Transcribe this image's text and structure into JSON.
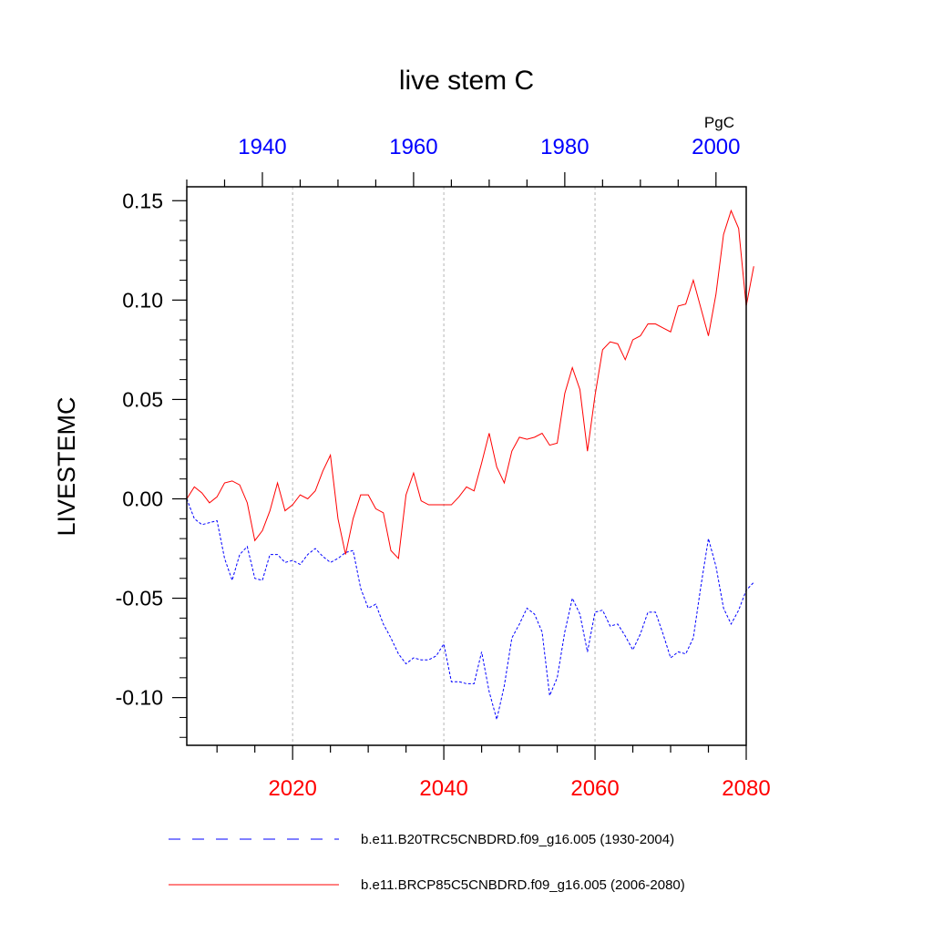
{
  "chart_data": {
    "type": "line",
    "title": "live stem C",
    "units": "PgC",
    "ylabel": "LIVESTEMC",
    "ylim": [
      -0.124,
      0.157
    ],
    "yticks": [
      {
        "value": 0.15,
        "label": "0.15"
      },
      {
        "value": 0.1,
        "label": "0.10"
      },
      {
        "value": 0.05,
        "label": "0.05"
      },
      {
        "value": 0.0,
        "label": "0.00"
      },
      {
        "value": -0.05,
        "label": "-0.05"
      },
      {
        "value": -0.1,
        "label": "-0.10"
      }
    ],
    "bottom_axis": {
      "color": "#ff0000",
      "xlim": [
        2006,
        2080
      ],
      "ticks": [
        {
          "value": 2020,
          "label": "2020"
        },
        {
          "value": 2040,
          "label": "2040"
        },
        {
          "value": 2060,
          "label": "2060"
        },
        {
          "value": 2080,
          "label": "2080"
        }
      ]
    },
    "top_axis": {
      "color": "#0000ff",
      "xlim": [
        1930,
        2004
      ],
      "ticks": [
        {
          "value": 1940,
          "label": "1940"
        },
        {
          "value": 1960,
          "label": "1960"
        },
        {
          "value": 1980,
          "label": "1980"
        },
        {
          "value": 2000,
          "label": "2000"
        }
      ]
    },
    "gridlines_x": [
      2020,
      2040,
      2060
    ],
    "series": [
      {
        "name": "b.e11.B20TRC5CNBDRD.f09_g16.005 (1930-2004)",
        "color": "#0000ff",
        "dash": "dashed",
        "axis": "top",
        "x_start": 1930,
        "values": [
          0.0,
          -0.01,
          -0.013,
          -0.012,
          -0.011,
          -0.03,
          -0.041,
          -0.028,
          -0.024,
          -0.04,
          -0.041,
          -0.028,
          -0.028,
          -0.032,
          -0.031,
          -0.033,
          -0.028,
          -0.025,
          -0.029,
          -0.032,
          -0.03,
          -0.027,
          -0.026,
          -0.045,
          -0.055,
          -0.053,
          -0.063,
          -0.07,
          -0.078,
          -0.083,
          -0.08,
          -0.081,
          -0.081,
          -0.079,
          -0.073,
          -0.092,
          -0.092,
          -0.093,
          -0.093,
          -0.077,
          -0.097,
          -0.111,
          -0.094,
          -0.07,
          -0.063,
          -0.055,
          -0.058,
          -0.067,
          -0.099,
          -0.09,
          -0.067,
          -0.05,
          -0.058,
          -0.077,
          -0.057,
          -0.056,
          -0.064,
          -0.063,
          -0.069,
          -0.076,
          -0.068,
          -0.057,
          -0.057,
          -0.068,
          -0.08,
          -0.077,
          -0.078,
          -0.07,
          -0.044,
          -0.02,
          -0.034,
          -0.055,
          -0.063,
          -0.056,
          -0.046,
          -0.042
        ]
      },
      {
        "name": "b.e11.BRCP85C5CNBDRD.f09_g16.005 (2006-2080)",
        "color": "#ff0000",
        "dash": "solid",
        "axis": "bottom",
        "x_start": 2006,
        "values": [
          0.0,
          0.006,
          0.003,
          -0.002,
          0.001,
          0.008,
          0.009,
          0.007,
          -0.002,
          -0.021,
          -0.016,
          -0.006,
          0.008,
          -0.006,
          -0.003,
          0.002,
          0.0,
          0.004,
          0.014,
          0.022,
          -0.01,
          -0.028,
          -0.01,
          0.002,
          0.002,
          -0.005,
          -0.007,
          -0.026,
          -0.03,
          0.002,
          0.013,
          -0.001,
          -0.003,
          -0.003,
          -0.003,
          -0.003,
          0.001,
          0.006,
          0.004,
          0.018,
          0.033,
          0.016,
          0.008,
          0.024,
          0.031,
          0.03,
          0.031,
          0.033,
          0.027,
          0.028,
          0.053,
          0.066,
          0.055,
          0.024,
          0.052,
          0.075,
          0.079,
          0.078,
          0.07,
          0.08,
          0.082,
          0.088,
          0.088,
          0.086,
          0.084,
          0.097,
          0.098,
          0.11,
          0.096,
          0.082,
          0.103,
          0.133,
          0.145,
          0.136,
          0.097,
          0.117
        ]
      }
    ]
  },
  "legend": {
    "items": [
      {
        "label": "b.e11.B20TRC5CNBDRD.f09_g16.005 (1930-2004)",
        "color": "#0000ff",
        "dash": "dashed"
      },
      {
        "label": "b.e11.BRCP85C5CNBDRD.f09_g16.005 (2006-2080)",
        "color": "#ff0000",
        "dash": "solid"
      }
    ]
  }
}
